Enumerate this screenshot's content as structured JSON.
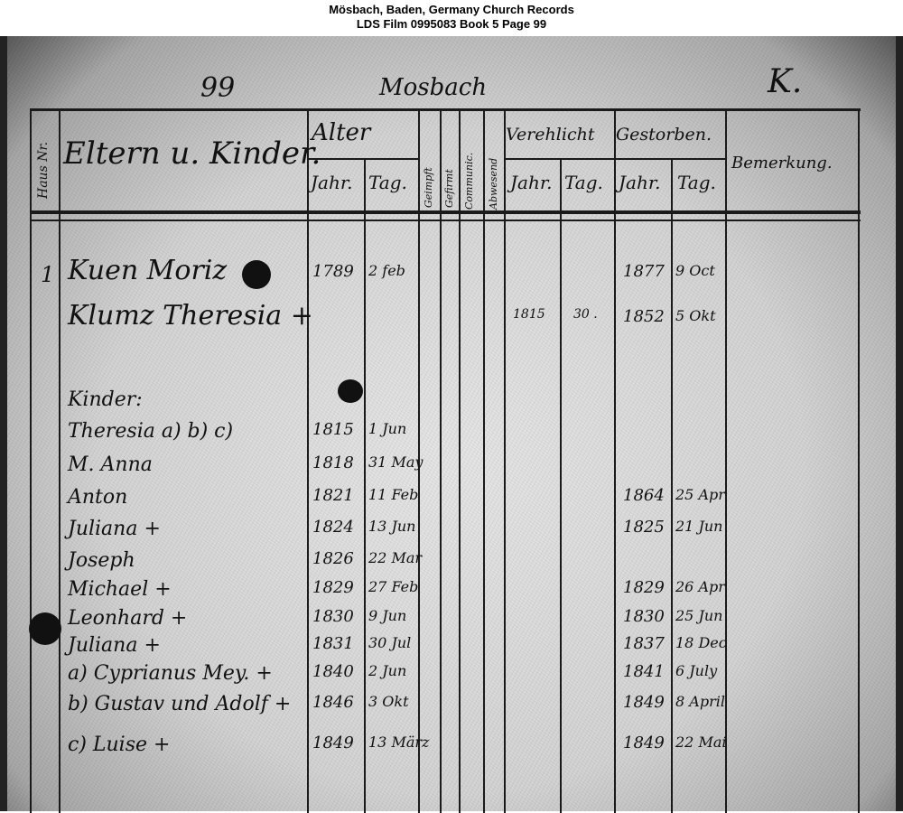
{
  "caption": {
    "line1": "Mösbach, Baden, Germany Church Records",
    "line2": "LDS Film 0995083 Book 5 Page 99"
  },
  "page": {
    "number": "99",
    "place": "Mosbach",
    "letter": "K."
  },
  "headers": {
    "haus_nr": "Haus Nr.",
    "eltern_kinder": "Eltern u. Kinder.",
    "alter": "Alter",
    "jahr": "Jahr.",
    "tag": "Tag.",
    "geimpft": "Geimpft",
    "gefirmt": "Gefirmt",
    "communic": "Communic.",
    "abwesend": "Abwesend",
    "verehlicht": "Verehlicht",
    "gestorben": "Gestorben.",
    "bemerkung": "Bemerkung."
  },
  "rows": [
    {
      "haus": "1",
      "name": "Kuen Moriz",
      "jahr": "1789",
      "tag": "2 feb",
      "ver_jahr": "",
      "ver_tag": "",
      "gest_jahr": "1877",
      "gest_tag": "9 Oct"
    },
    {
      "haus": "",
      "name": "Klumz Theresia +",
      "jahr": "",
      "tag": "",
      "ver_jahr": "1815",
      "ver_tag": "30 .",
      "gest_jahr": "1852",
      "gest_tag": "5 Okt"
    },
    {
      "haus": "",
      "name": "Kinder:",
      "jahr": "",
      "tag": "",
      "ver_jahr": "",
      "ver_tag": "",
      "gest_jahr": "",
      "gest_tag": ""
    },
    {
      "haus": "",
      "name": "Theresia a) b) c)",
      "jahr": "1815",
      "tag": "1 Jun",
      "ver_jahr": "",
      "ver_tag": "",
      "gest_jahr": "",
      "gest_tag": ""
    },
    {
      "haus": "",
      "name": "M. Anna",
      "jahr": "1818",
      "tag": "31 May",
      "ver_jahr": "",
      "ver_tag": "",
      "gest_jahr": "",
      "gest_tag": ""
    },
    {
      "haus": "",
      "name": "Anton",
      "jahr": "1821",
      "tag": "11 Feb",
      "ver_jahr": "",
      "ver_tag": "",
      "gest_jahr": "1864",
      "gest_tag": "25 Apr"
    },
    {
      "haus": "",
      "name": "Juliana +",
      "jahr": "1824",
      "tag": "13 Jun",
      "ver_jahr": "",
      "ver_tag": "",
      "gest_jahr": "1825",
      "gest_tag": "21 Jun"
    },
    {
      "haus": "",
      "name": "Joseph",
      "jahr": "1826",
      "tag": "22 Mar",
      "ver_jahr": "",
      "ver_tag": "",
      "gest_jahr": "",
      "gest_tag": ""
    },
    {
      "haus": "",
      "name": "Michael +",
      "jahr": "1829",
      "tag": "27 Feb",
      "ver_jahr": "",
      "ver_tag": "",
      "gest_jahr": "1829",
      "gest_tag": "26 Apr"
    },
    {
      "haus": "",
      "name": "Leonhard +",
      "jahr": "1830",
      "tag": "9 Jun",
      "ver_jahr": "",
      "ver_tag": "",
      "gest_jahr": "1830",
      "gest_tag": "25 Jun"
    },
    {
      "haus": "",
      "name": "Juliana +",
      "jahr": "1831",
      "tag": "30 Jul",
      "ver_jahr": "",
      "ver_tag": "",
      "gest_jahr": "1837",
      "gest_tag": "18 Dec"
    },
    {
      "haus": "",
      "name": "a) Cyprianus Mey. +",
      "jahr": "1840",
      "tag": "2 Jun",
      "ver_jahr": "",
      "ver_tag": "",
      "gest_jahr": "1841",
      "gest_tag": "6 July"
    },
    {
      "haus": "",
      "name": "b) Gustav und Adolf +",
      "jahr": "1846",
      "tag": "3 Okt",
      "ver_jahr": "",
      "ver_tag": "",
      "gest_jahr": "1849",
      "gest_tag": "8 April"
    },
    {
      "haus": "",
      "name": "c) Luise +",
      "jahr": "1849",
      "tag": "13 März",
      "ver_jahr": "",
      "ver_tag": "",
      "gest_jahr": "1849",
      "gest_tag": "22 Mai"
    }
  ]
}
